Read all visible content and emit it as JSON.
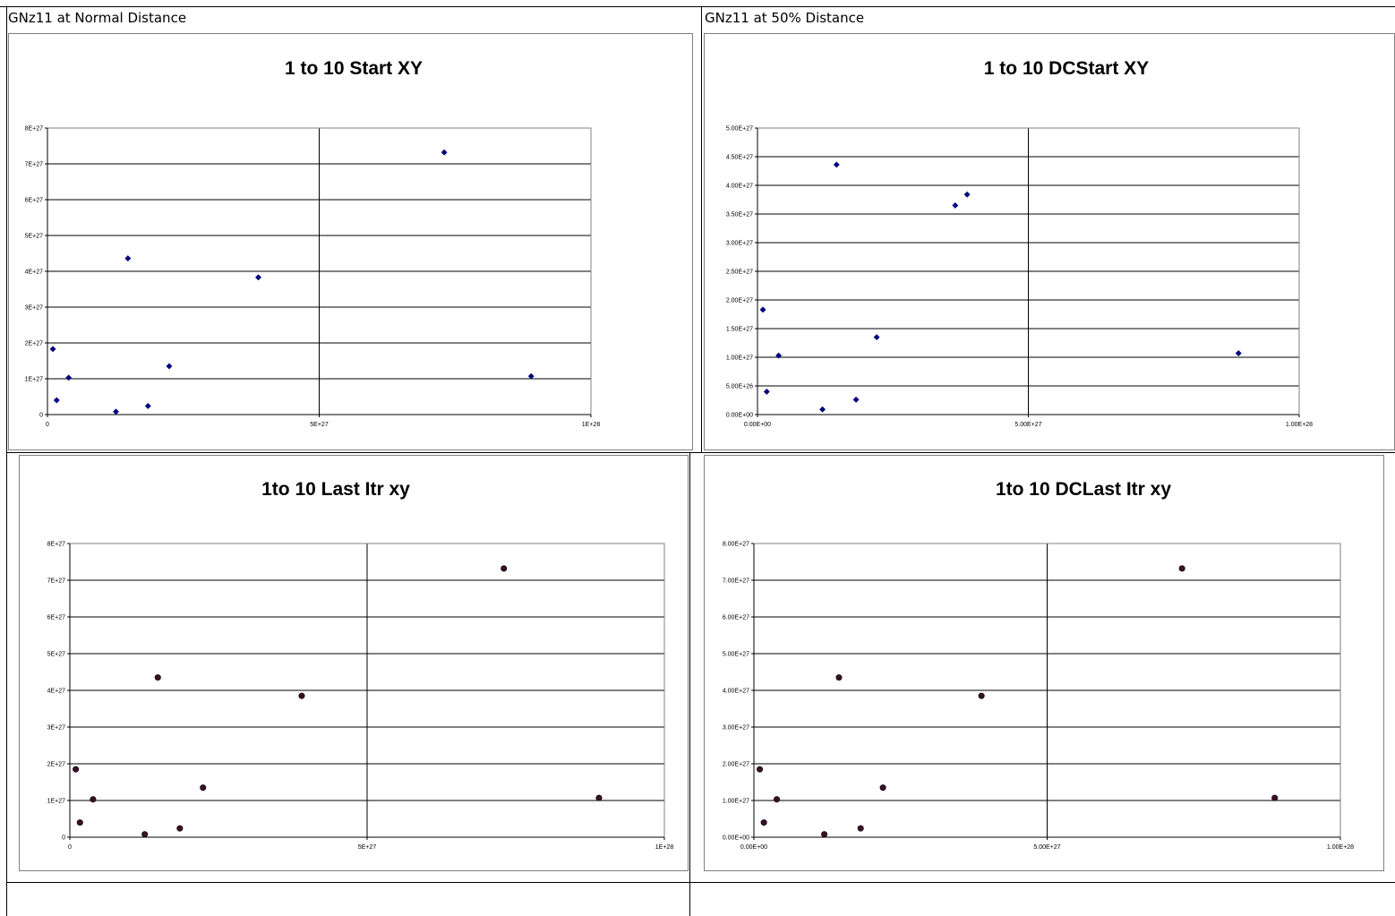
{
  "columns": {
    "left_header": "GNz11 at Normal Distance",
    "right_header": "GNz11 at 50% Distance"
  },
  "colors": {
    "start_marker": "#000080",
    "last_marker": "#3b0f28",
    "gridline": "#000000",
    "plot_border": "#808080"
  },
  "chart_data": [
    {
      "id": "normal_start",
      "type": "scatter",
      "title": "1 to 10 Start XY",
      "xlim": [
        0,
        1e+28
      ],
      "ylim": [
        0,
        8e+27
      ],
      "x_ticks": [
        {
          "v": 0,
          "label": "0"
        },
        {
          "v": 5e+27,
          "label": "5E+27"
        },
        {
          "v": 1e+28,
          "label": "1E+28"
        }
      ],
      "y_ticks": [
        {
          "v": 0,
          "label": "0"
        },
        {
          "v": 1e+27,
          "label": "1E+27"
        },
        {
          "v": 2e+27,
          "label": "2E+27"
        },
        {
          "v": 3e+27,
          "label": "3E+27"
        },
        {
          "v": 4e+27,
          "label": "4E+27"
        },
        {
          "v": 5e+27,
          "label": "5E+27"
        },
        {
          "v": 6e+27,
          "label": "6E+27"
        },
        {
          "v": 7e+27,
          "label": "7E+27"
        },
        {
          "v": 8e+27,
          "label": "8E+27"
        }
      ],
      "grid": "major",
      "marker": "diamond",
      "points": [
        {
          "x": 1e+26,
          "y": 1.83e+27
        },
        {
          "x": 1.7e+26,
          "y": 4e+26
        },
        {
          "x": 3.9e+26,
          "y": 1.03e+27
        },
        {
          "x": 1.26e+27,
          "y": 8e+25
        },
        {
          "x": 1.48e+27,
          "y": 4.36e+27
        },
        {
          "x": 1.85e+27,
          "y": 2.4e+26
        },
        {
          "x": 2.24e+27,
          "y": 1.35e+27
        },
        {
          "x": 3.88e+27,
          "y": 3.83e+27
        },
        {
          "x": 7.3e+27,
          "y": 7.32e+27
        },
        {
          "x": 8.9e+27,
          "y": 1.07e+27
        }
      ]
    },
    {
      "id": "half_start",
      "type": "scatter",
      "title": "1 to 10 DCStart XY",
      "xlim": [
        0,
        1e+28
      ],
      "ylim": [
        0,
        5e+27
      ],
      "x_ticks": [
        {
          "v": 0,
          "label": "0.00E+00"
        },
        {
          "v": 5e+27,
          "label": "5.00E+27"
        },
        {
          "v": 1e+28,
          "label": "1.00E+28"
        }
      ],
      "y_ticks": [
        {
          "v": 0,
          "label": "0.00E+00"
        },
        {
          "v": 5e+26,
          "label": "5.00E+26"
        },
        {
          "v": 1e+27,
          "label": "1.00E+27"
        },
        {
          "v": 1.5e+27,
          "label": "1.50E+27"
        },
        {
          "v": 2e+27,
          "label": "2.00E+27"
        },
        {
          "v": 2.5e+27,
          "label": "2.50E+27"
        },
        {
          "v": 3e+27,
          "label": "3.00E+27"
        },
        {
          "v": 3.5e+27,
          "label": "3.50E+27"
        },
        {
          "v": 4e+27,
          "label": "4.00E+27"
        },
        {
          "v": 4.5e+27,
          "label": "4.50E+27"
        },
        {
          "v": 5e+27,
          "label": "5.00E+27"
        }
      ],
      "grid": "major",
      "marker": "diamond",
      "points": [
        {
          "x": 1e+26,
          "y": 1.83e+27
        },
        {
          "x": 1.7e+26,
          "y": 4e+26
        },
        {
          "x": 3.9e+26,
          "y": 1.03e+27
        },
        {
          "x": 1.2e+27,
          "y": 9e+25
        },
        {
          "x": 1.46e+27,
          "y": 4.36e+27
        },
        {
          "x": 1.82e+27,
          "y": 2.6e+26
        },
        {
          "x": 2.2e+27,
          "y": 1.35e+27
        },
        {
          "x": 3.65e+27,
          "y": 3.65e+27
        },
        {
          "x": 3.87e+27,
          "y": 3.84e+27
        },
        {
          "x": 8.88e+27,
          "y": 1.07e+27
        }
      ]
    },
    {
      "id": "normal_last",
      "type": "scatter",
      "title": "1to 10 Last Itr xy",
      "xlim": [
        0,
        1e+28
      ],
      "ylim": [
        0,
        8e+27
      ],
      "x_ticks": [
        {
          "v": 0,
          "label": "0"
        },
        {
          "v": 5e+27,
          "label": "5E+27"
        },
        {
          "v": 1e+28,
          "label": "1E+28"
        }
      ],
      "y_ticks": [
        {
          "v": 0,
          "label": "0"
        },
        {
          "v": 1e+27,
          "label": "1E+27"
        },
        {
          "v": 2e+27,
          "label": "2E+27"
        },
        {
          "v": 3e+27,
          "label": "3E+27"
        },
        {
          "v": 4e+27,
          "label": "4E+27"
        },
        {
          "v": 5e+27,
          "label": "5E+27"
        },
        {
          "v": 6e+27,
          "label": "6E+27"
        },
        {
          "v": 7e+27,
          "label": "7E+27"
        },
        {
          "v": 8e+27,
          "label": "8E+27"
        }
      ],
      "grid": "major",
      "marker": "circle",
      "points": [
        {
          "x": 1e+26,
          "y": 1.85e+27
        },
        {
          "x": 1.7e+26,
          "y": 4e+26
        },
        {
          "x": 3.9e+26,
          "y": 1.03e+27
        },
        {
          "x": 1.26e+27,
          "y": 8e+25
        },
        {
          "x": 1.48e+27,
          "y": 4.35e+27
        },
        {
          "x": 1.85e+27,
          "y": 2.4e+26
        },
        {
          "x": 2.24e+27,
          "y": 1.35e+27
        },
        {
          "x": 3.9e+27,
          "y": 3.85e+27
        },
        {
          "x": 7.3e+27,
          "y": 7.32e+27
        },
        {
          "x": 8.9e+27,
          "y": 1.07e+27
        }
      ]
    },
    {
      "id": "half_last",
      "type": "scatter",
      "title": "1to 10 DCLast Itr xy",
      "xlim": [
        0,
        1e+28
      ],
      "ylim": [
        0,
        8e+27
      ],
      "x_ticks": [
        {
          "v": 0,
          "label": "0.00E+00"
        },
        {
          "v": 5e+27,
          "label": "5.00E+27"
        },
        {
          "v": 1e+28,
          "label": "1.00E+28"
        }
      ],
      "y_ticks": [
        {
          "v": 0,
          "label": "0.00E+00"
        },
        {
          "v": 1e+27,
          "label": "1.00E+27"
        },
        {
          "v": 2e+27,
          "label": "2.00E+27"
        },
        {
          "v": 3e+27,
          "label": "3.00E+27"
        },
        {
          "v": 4e+27,
          "label": "4.00E+27"
        },
        {
          "v": 5e+27,
          "label": "5.00E+27"
        },
        {
          "v": 6e+27,
          "label": "6.00E+27"
        },
        {
          "v": 7e+27,
          "label": "7.00E+27"
        },
        {
          "v": 8e+27,
          "label": "8.00E+27"
        }
      ],
      "grid": "major",
      "marker": "circle",
      "points": [
        {
          "x": 1e+26,
          "y": 1.85e+27
        },
        {
          "x": 1.7e+26,
          "y": 4e+26
        },
        {
          "x": 3.9e+26,
          "y": 1.03e+27
        },
        {
          "x": 1.2e+27,
          "y": 8e+25
        },
        {
          "x": 1.45e+27,
          "y": 4.35e+27
        },
        {
          "x": 1.82e+27,
          "y": 2.4e+26
        },
        {
          "x": 2.2e+27,
          "y": 1.35e+27
        },
        {
          "x": 3.88e+27,
          "y": 3.85e+27
        },
        {
          "x": 7.3e+27,
          "y": 7.32e+27
        },
        {
          "x": 8.88e+27,
          "y": 1.07e+27
        }
      ]
    }
  ]
}
